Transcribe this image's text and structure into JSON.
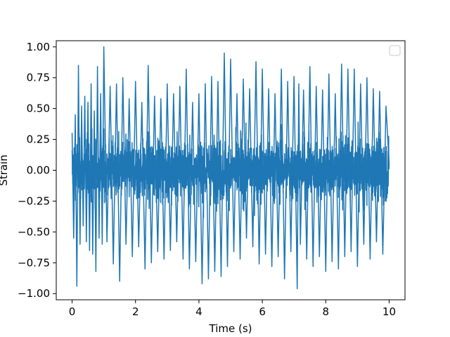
{
  "chart_data": {
    "type": "line",
    "title": "",
    "xlabel": "Time (s)",
    "ylabel": "Strain",
    "xlim": [
      -0.5,
      10.5
    ],
    "ylim": [
      -1.05,
      1.05
    ],
    "xticks": [
      0,
      2,
      4,
      6,
      8,
      10
    ],
    "xtick_labels": [
      "0",
      "2",
      "4",
      "6",
      "8",
      "10"
    ],
    "yticks": [
      -1.0,
      -0.75,
      -0.5,
      -0.25,
      0.0,
      0.25,
      0.5,
      0.75,
      1.0
    ],
    "ytick_labels": [
      "−1.00",
      "−0.75",
      "−0.50",
      "−0.25",
      "0.00",
      "0.25",
      "0.50",
      "0.75",
      "1.00"
    ],
    "grid": false,
    "legend": {
      "placement": "top-right",
      "entries": []
    },
    "series": [
      {
        "color": "#1f77b4",
        "x_start": 0.0,
        "x_end": 10.0,
        "typical_range": [
          -0.5,
          0.5
        ],
        "x": [
          0.0,
          0.05,
          0.1,
          0.15,
          0.2,
          0.25,
          0.3,
          0.35,
          0.4,
          0.45,
          0.5,
          0.55,
          0.6,
          0.65,
          0.7,
          0.75,
          0.8,
          0.85,
          0.9,
          0.95,
          1.0,
          1.1,
          1.2,
          1.3,
          1.4,
          1.5,
          1.6,
          1.7,
          1.8,
          1.9,
          2.0,
          2.1,
          2.2,
          2.3,
          2.4,
          2.5,
          2.6,
          2.7,
          2.8,
          2.9,
          3.0,
          3.1,
          3.2,
          3.3,
          3.4,
          3.5,
          3.6,
          3.7,
          3.8,
          3.9,
          4.0,
          4.1,
          4.2,
          4.3,
          4.4,
          4.5,
          4.6,
          4.7,
          4.8,
          4.9,
          5.0,
          5.1,
          5.2,
          5.3,
          5.4,
          5.5,
          5.6,
          5.7,
          5.8,
          5.9,
          6.0,
          6.1,
          6.2,
          6.3,
          6.4,
          6.5,
          6.6,
          6.7,
          6.8,
          6.9,
          7.0,
          7.1,
          7.15,
          7.2,
          7.3,
          7.4,
          7.5,
          7.6,
          7.7,
          7.8,
          7.9,
          8.0,
          8.1,
          8.2,
          8.3,
          8.4,
          8.5,
          8.6,
          8.7,
          8.8,
          8.9,
          9.0,
          9.1,
          9.2,
          9.3,
          9.4,
          9.5,
          9.6,
          9.7,
          9.8,
          9.9,
          10.0
        ],
        "y": [
          0.3,
          -0.55,
          0.45,
          -0.94,
          0.85,
          -0.6,
          0.52,
          -0.45,
          0.6,
          -0.58,
          0.55,
          -0.65,
          0.7,
          -0.68,
          0.48,
          -0.82,
          0.84,
          -0.55,
          0.62,
          -0.6,
          1.0,
          -0.58,
          0.68,
          -0.76,
          0.7,
          -0.9,
          0.75,
          -0.6,
          0.58,
          -0.7,
          0.72,
          -0.62,
          0.55,
          -0.8,
          0.85,
          -0.75,
          0.6,
          -0.66,
          0.58,
          -0.72,
          0.7,
          -0.65,
          0.62,
          -0.58,
          0.68,
          -0.72,
          0.82,
          -0.8,
          0.55,
          -0.74,
          0.62,
          -0.92,
          0.7,
          -0.88,
          0.76,
          -0.82,
          0.72,
          -0.86,
          0.95,
          -0.78,
          0.9,
          -0.66,
          0.62,
          -0.72,
          0.74,
          -0.55,
          0.66,
          -0.62,
          0.88,
          -0.76,
          0.82,
          -0.68,
          0.66,
          -0.78,
          0.62,
          -0.7,
          0.82,
          -0.88,
          0.72,
          -0.66,
          0.76,
          -0.96,
          0.7,
          -0.6,
          0.65,
          -0.72,
          0.84,
          -0.78,
          0.68,
          -0.7,
          0.65,
          -0.82,
          0.78,
          -0.74,
          0.62,
          -0.8,
          0.86,
          -0.7,
          0.82,
          -0.66,
          0.82,
          -0.78,
          0.7,
          -0.6,
          0.75,
          -0.72,
          0.66,
          -0.58,
          0.64,
          -0.68,
          0.52,
          0.05
        ]
      }
    ]
  }
}
